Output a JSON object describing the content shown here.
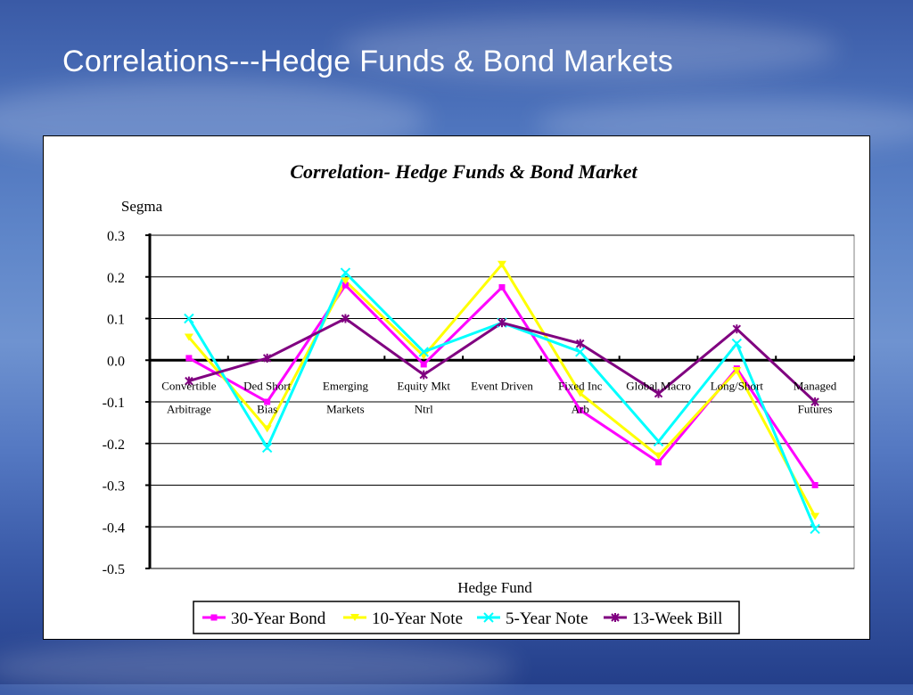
{
  "slide": {
    "title": "Correlations---Hedge Funds & Bond Markets"
  },
  "colors": {
    "background": "#4e74bd",
    "series": [
      "#ff00ff",
      "#ffff00",
      "#00ffff",
      "#800080"
    ]
  },
  "chart_data": {
    "type": "line",
    "title": "Correlation- Hedge Funds & Bond Market",
    "ylabel": "Segma",
    "xlabel": "Hedge Fund",
    "ylim": [
      -0.5,
      0.3
    ],
    "yticks": [
      "0.3",
      "0.2",
      "0.1",
      "0.0",
      "-0.1",
      "-0.2",
      "-0.3",
      "-0.4",
      "-0.5"
    ],
    "grid": true,
    "legend_position": "bottom",
    "categories": [
      [
        "Convertible",
        "Arbitrage"
      ],
      [
        "Ded Short",
        "Bias"
      ],
      [
        "Emerging",
        "Markets"
      ],
      [
        "Equity Mkt",
        "Ntrl"
      ],
      [
        "Event Driven"
      ],
      [
        "Fixed Inc",
        "Arb"
      ],
      [
        "Global Macro"
      ],
      [
        "Long/Short"
      ],
      [
        "Managed",
        "Futures"
      ]
    ],
    "series": [
      {
        "name": "30-Year Bond",
        "color": "#ff00ff",
        "values": [
          0.005,
          -0.1,
          0.18,
          -0.01,
          0.175,
          -0.12,
          -0.245,
          -0.02,
          -0.3
        ]
      },
      {
        "name": "10-Year Note",
        "color": "#ffff00",
        "values": [
          0.055,
          -0.165,
          0.19,
          0.01,
          0.23,
          -0.08,
          -0.23,
          -0.025,
          -0.375
        ]
      },
      {
        "name": "5-Year Note",
        "color": "#00ffff",
        "values": [
          0.1,
          -0.21,
          0.21,
          0.02,
          0.09,
          0.02,
          -0.195,
          0.04,
          -0.405
        ]
      },
      {
        "name": "13-Week Bill",
        "color": "#800080",
        "values": [
          -0.05,
          0.005,
          0.1,
          -0.035,
          0.09,
          0.04,
          -0.08,
          0.075,
          -0.1
        ]
      }
    ]
  }
}
